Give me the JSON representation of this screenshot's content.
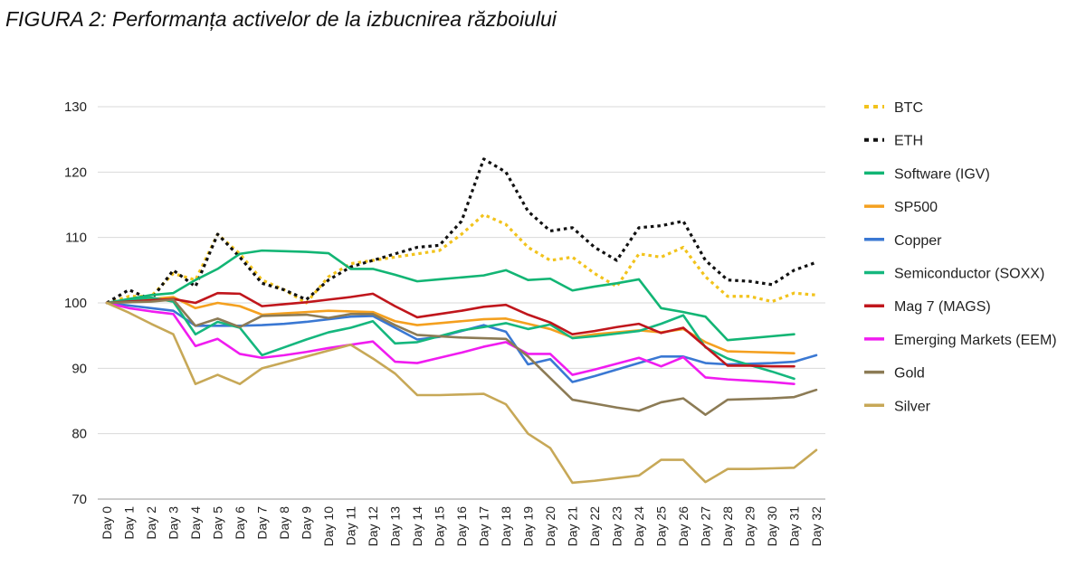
{
  "chart_data": {
    "type": "line",
    "title": "FIGURA 2: Performanța activelor de la izbucnirea războiului",
    "x": [
      "Day 0",
      "Day 1",
      "Day 2",
      "Day 3",
      "Day 4",
      "Day 5",
      "Day 6",
      "Day 7",
      "Day 8",
      "Day 9",
      "Day 10",
      "Day 11",
      "Day 12",
      "Day 13",
      "Day 14",
      "Day 15",
      "Day 16",
      "Day 17",
      "Day 18",
      "Day 19",
      "Day 20",
      "Day 21",
      "Day 22",
      "Day 23",
      "Day 24",
      "Day 25",
      "Day 26",
      "Day 27",
      "Day 28",
      "Day 29",
      "Day 30",
      "Day 31",
      "Day 32"
    ],
    "ylim": [
      70,
      130
    ],
    "yticks": [
      70,
      80,
      90,
      100,
      110,
      120,
      130
    ],
    "grid": true,
    "legend": "right",
    "series": [
      {
        "name": "BTC",
        "color": "#f2c31c",
        "dash": "dotted",
        "values": [
          100,
          101,
          101,
          104.5,
          103.5,
          110.5,
          107.5,
          103.5,
          102,
          100,
          104,
          106,
          106.5,
          107,
          107.5,
          108,
          110.5,
          113.5,
          112,
          108.5,
          106.5,
          107,
          104.5,
          102.5,
          107.5,
          107,
          108.5,
          104,
          101,
          101,
          100.2,
          101.5,
          101.2
        ]
      },
      {
        "name": "ETH",
        "color": "#111111",
        "dash": "dotted",
        "values": [
          100,
          102,
          100.5,
          105,
          102.5,
          110.5,
          107,
          103,
          102,
          100.5,
          103.5,
          105.5,
          106.5,
          107.5,
          108.5,
          108.8,
          112.5,
          122,
          120,
          114,
          111,
          111.5,
          108.5,
          106.5,
          111.5,
          111.8,
          112.5,
          106.5,
          103.5,
          103.3,
          102.8,
          105,
          106.2
        ]
      },
      {
        "name": "Software (IGV)",
        "color": "#12b574",
        "dash": "solid",
        "values": [
          100,
          100.6,
          101.2,
          101.5,
          103.5,
          105.2,
          107.5,
          108,
          107.9,
          107.8,
          107.6,
          105.2,
          105.2,
          104.3,
          103.3,
          103.6,
          103.9,
          104.2,
          105,
          103.5,
          103.7,
          101.9,
          102.5,
          103,
          103.6,
          99.2,
          98.6,
          97.9,
          94.3,
          94.6,
          94.9,
          95.2,
          null
        ]
      },
      {
        "name": "SP500",
        "color": "#f4a01f",
        "dash": "solid",
        "values": [
          100,
          100.3,
          100.6,
          100.9,
          99.2,
          100,
          99.5,
          98.2,
          98.4,
          98.6,
          98.8,
          98.7,
          98.6,
          97.2,
          96.6,
          96.9,
          97.2,
          97.5,
          97.6,
          96.8,
          96,
          94.7,
          95.2,
          95.5,
          95.8,
          95.5,
          96,
          94,
          92.6,
          92.5,
          92.4,
          92.3,
          null
        ]
      },
      {
        "name": "Copper",
        "color": "#3a78d3",
        "dash": "solid",
        "values": [
          100,
          99.6,
          99.2,
          98.8,
          96.5,
          96.5,
          96.5,
          96.6,
          96.8,
          97.1,
          97.5,
          97.9,
          98,
          96.2,
          94.4,
          94.8,
          95.7,
          96.6,
          95.6,
          90.6,
          91.4,
          87.9,
          88.8,
          89.8,
          90.8,
          91.8,
          91.8,
          90.8,
          90.6,
          90.7,
          90.8,
          91,
          92
        ]
      },
      {
        "name": "Semiconductor (SOXX)",
        "color": "#15b77e",
        "dash": "solid",
        "values": [
          100,
          100.5,
          100.8,
          100.2,
          95.2,
          97.1,
          96.2,
          92,
          93.2,
          94.4,
          95.5,
          96.2,
          97.2,
          93.8,
          94,
          94.9,
          95.8,
          96.3,
          96.9,
          96,
          96.7,
          94.6,
          94.9,
          95.3,
          95.7,
          96.8,
          98.1,
          93.2,
          91.5,
          90.5,
          89.5,
          88.4,
          null
        ]
      },
      {
        "name": "Mag 7 (MAGS)",
        "color": "#c0161c",
        "dash": "solid",
        "values": [
          100,
          100.2,
          100.4,
          100.6,
          100,
          101.5,
          101.4,
          99.5,
          99.8,
          100.1,
          100.5,
          100.9,
          101.4,
          99.5,
          97.8,
          98.3,
          98.8,
          99.4,
          99.7,
          98.2,
          97,
          95.2,
          95.7,
          96.3,
          96.8,
          95.4,
          96.2,
          93.3,
          90.4,
          90.4,
          90.3,
          90.3,
          null
        ]
      },
      {
        "name": "Emerging Markets (EEM)",
        "color": "#f01cf0",
        "dash": "solid",
        "values": [
          100,
          99.2,
          98.7,
          98.3,
          93.4,
          94.5,
          92.2,
          91.6,
          92,
          92.5,
          93.1,
          93.6,
          94.1,
          91,
          90.8,
          91.6,
          92.4,
          93.3,
          94,
          92.2,
          92.2,
          89,
          89.8,
          90.7,
          91.6,
          90.3,
          91.7,
          88.6,
          88.3,
          88.1,
          87.9,
          87.6,
          null
        ]
      },
      {
        "name": "Gold",
        "color": "#8c7b55",
        "dash": "solid",
        "values": [
          100,
          100.1,
          100.2,
          100.5,
          96.5,
          97.6,
          96.3,
          98,
          98.1,
          98.2,
          97.7,
          98.3,
          98.3,
          96.6,
          95.1,
          94.9,
          94.7,
          94.6,
          94.5,
          91.8,
          88.5,
          85.2,
          84.6,
          84,
          83.5,
          84.8,
          85.4,
          82.9,
          85.2,
          85.3,
          85.4,
          85.6,
          86.7
        ]
      },
      {
        "name": "Silver",
        "color": "#c7a857",
        "dash": "solid",
        "values": [
          100,
          98.5,
          96.8,
          95.2,
          87.6,
          89,
          87.6,
          90,
          90.9,
          91.8,
          92.7,
          93.6,
          91.5,
          89.2,
          85.9,
          85.9,
          86,
          86.1,
          84.5,
          80,
          77.8,
          72.5,
          72.8,
          73.2,
          73.6,
          76,
          76,
          72.6,
          74.6,
          74.6,
          74.7,
          74.8,
          77.5
        ]
      }
    ]
  }
}
